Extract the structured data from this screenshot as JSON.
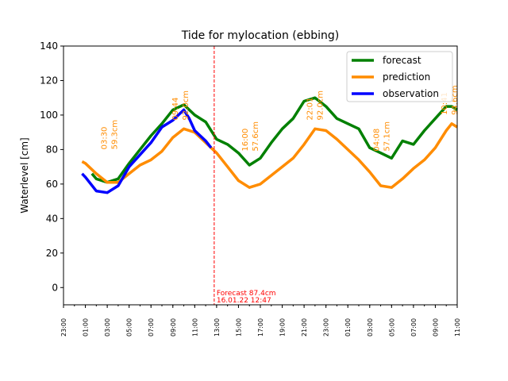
{
  "chart_data": {
    "type": "line",
    "title": "Tide for mylocation (ebbing)",
    "y_label": "Waterlevel [cm]",
    "xlim": [
      0,
      36
    ],
    "ylim": [
      -10,
      140
    ],
    "xticks": [
      {
        "value": 0,
        "label": "23:00"
      },
      {
        "value": 2,
        "label": "01:00"
      },
      {
        "value": 4,
        "label": "03:00"
      },
      {
        "value": 6,
        "label": "05:00"
      },
      {
        "value": 8,
        "label": "07:00"
      },
      {
        "value": 10,
        "label": "09:00"
      },
      {
        "value": 12,
        "label": "11:00"
      },
      {
        "value": 14,
        "label": "13:00"
      },
      {
        "value": 16,
        "label": "15:00"
      },
      {
        "value": 18,
        "label": "17:00"
      },
      {
        "value": 20,
        "label": "19:00"
      },
      {
        "value": 22,
        "label": "21:00"
      },
      {
        "value": 24,
        "label": "23:00"
      },
      {
        "value": 26,
        "label": "01:00"
      },
      {
        "value": 28,
        "label": "03:00"
      },
      {
        "value": 30,
        "label": "05:00"
      },
      {
        "value": 32,
        "label": "07:00"
      },
      {
        "value": 34,
        "label": "09:00"
      },
      {
        "value": 36,
        "label": "11:00"
      }
    ],
    "yticks": [
      0,
      20,
      40,
      60,
      80,
      100,
      120,
      140
    ],
    "legend": "upper right",
    "series": [
      {
        "name": "forecast",
        "color": "#008000",
        "x": [
          2.6,
          3,
          4,
          5,
          6,
          7,
          8,
          9,
          10,
          11,
          12,
          13,
          14,
          15,
          16,
          17,
          18,
          19,
          20,
          21,
          22,
          23,
          24,
          25,
          26,
          27,
          28,
          29,
          30,
          31,
          32,
          33,
          34,
          35,
          35.5,
          36
        ],
        "values": [
          66,
          63,
          61,
          63,
          72,
          80,
          88,
          95,
          103,
          106,
          100,
          96,
          86,
          83,
          78,
          71,
          75,
          84,
          92,
          98,
          108,
          110,
          105,
          98,
          95,
          92,
          81,
          78,
          75,
          85,
          83,
          91,
          98,
          105,
          105,
          103
        ]
      },
      {
        "name": "prediction",
        "color": "#ff8c00",
        "x": [
          1.7,
          2,
          3,
          4,
          5,
          6,
          7,
          8,
          9,
          10,
          11,
          12,
          13,
          14,
          15,
          16,
          17,
          18,
          19,
          20,
          21,
          22,
          23,
          24,
          25,
          26,
          27,
          28,
          29,
          30,
          31,
          32,
          33,
          34,
          35,
          35.5,
          36
        ],
        "values": [
          73,
          72,
          66,
          61,
          61,
          66,
          71,
          74,
          79,
          87,
          92,
          90,
          84,
          78,
          70,
          62,
          58,
          60,
          65,
          70,
          75,
          83,
          92,
          91,
          86,
          80,
          74,
          67,
          59,
          58,
          63,
          69,
          74,
          81,
          91,
          95,
          93
        ]
      },
      {
        "name": "observation",
        "color": "#0000ff",
        "x": [
          1.7,
          2,
          3,
          4,
          5,
          6,
          7,
          8,
          9,
          10,
          11,
          11.5,
          12,
          13,
          13.5
        ],
        "values": [
          66,
          64,
          56,
          55,
          59,
          70,
          77,
          84,
          93,
          97,
          103,
          98,
          91,
          85,
          81
        ]
      }
    ],
    "annotations": [
      {
        "x": 4.1,
        "y": 80,
        "time": "03:30",
        "level": "59.3cm"
      },
      {
        "x": 10.6,
        "y": 97,
        "time": "09:44",
        "level": "92.0cm"
      },
      {
        "x": 17,
        "y": 79,
        "time": "16:00",
        "level": "57.6cm"
      },
      {
        "x": 22.9,
        "y": 97,
        "time": "22:01",
        "level": "92.0cm"
      },
      {
        "x": 29,
        "y": 79,
        "time": "04:08",
        "level": "57.1cm"
      },
      {
        "x": 35.2,
        "y": 100,
        "time": "10:41",
        "level": "94.6cm"
      }
    ],
    "marker": {
      "x": 13.78,
      "color": "#ff0000",
      "label": "Forecast 87.4cm",
      "sublabel": "16.01.22 12:47"
    }
  }
}
